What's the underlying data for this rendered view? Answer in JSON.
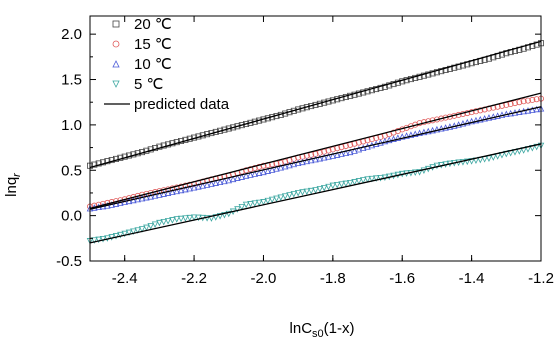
{
  "chart_data": {
    "type": "scatter",
    "xlabel": "lnC",
    "xlabel_sub": "s0",
    "xlabel_tail": "(1-x)",
    "ylabel": "lnq",
    "ylabel_sub": "r",
    "xlim": [
      -2.5,
      -1.2
    ],
    "ylim": [
      -0.5,
      2.2
    ],
    "x_ticks": [
      -2.4,
      -2.2,
      -2.0,
      -1.8,
      -1.6,
      -1.4,
      -1.2
    ],
    "x_tick_labels": [
      "-2.4",
      "-2.2",
      "-2.0",
      "-1.8",
      "-1.6",
      "-1.4",
      "-1.2"
    ],
    "y_ticks": [
      -0.5,
      0.0,
      0.5,
      1.0,
      1.5,
      2.0
    ],
    "y_tick_labels": [
      "-0.5",
      "0.0",
      "0.5",
      "1.0",
      "1.5",
      "2.0"
    ],
    "legend_position": "top-left",
    "series": [
      {
        "name": "20 ℃",
        "marker": "square",
        "color": "#444444",
        "x": [
          -2.5,
          -2.45,
          -2.4,
          -2.35,
          -2.3,
          -2.25,
          -2.2,
          -2.15,
          -2.1,
          -2.05,
          -2.0,
          -1.95,
          -1.9,
          -1.85,
          -1.8,
          -1.75,
          -1.7,
          -1.65,
          -1.6,
          -1.55,
          -1.5,
          -1.45,
          -1.4,
          -1.35,
          -1.3,
          -1.25,
          -1.2
        ],
        "y": [
          0.55,
          0.6,
          0.65,
          0.7,
          0.76,
          0.81,
          0.86,
          0.91,
          0.96,
          1.01,
          1.06,
          1.11,
          1.17,
          1.22,
          1.27,
          1.32,
          1.37,
          1.42,
          1.48,
          1.53,
          1.58,
          1.63,
          1.68,
          1.73,
          1.79,
          1.84,
          1.9
        ]
      },
      {
        "name": "15 ℃",
        "marker": "circle",
        "color": "#e05a5a",
        "x": [
          -2.5,
          -2.45,
          -2.4,
          -2.35,
          -2.3,
          -2.25,
          -2.2,
          -2.15,
          -2.1,
          -2.05,
          -2.0,
          -1.95,
          -1.9,
          -1.85,
          -1.8,
          -1.75,
          -1.7,
          -1.65,
          -1.6,
          -1.55,
          -1.5,
          -1.45,
          -1.4,
          -1.35,
          -1.3,
          -1.25,
          -1.2
        ],
        "y": [
          0.1,
          0.14,
          0.18,
          0.23,
          0.27,
          0.31,
          0.35,
          0.4,
          0.44,
          0.5,
          0.55,
          0.58,
          0.64,
          0.68,
          0.73,
          0.78,
          0.83,
          0.88,
          0.95,
          1.02,
          1.06,
          1.1,
          1.14,
          1.18,
          1.22,
          1.26,
          1.29
        ]
      },
      {
        "name": "10 ℃",
        "marker": "triangle-up",
        "color": "#4a5ad8",
        "x": [
          -2.5,
          -2.45,
          -2.4,
          -2.35,
          -2.3,
          -2.25,
          -2.2,
          -2.15,
          -2.1,
          -2.05,
          -2.0,
          -1.95,
          -1.9,
          -1.85,
          -1.8,
          -1.75,
          -1.7,
          -1.65,
          -1.6,
          -1.55,
          -1.5,
          -1.45,
          -1.4,
          -1.35,
          -1.3,
          -1.25,
          -1.2
        ],
        "y": [
          0.08,
          0.11,
          0.15,
          0.19,
          0.23,
          0.27,
          0.31,
          0.35,
          0.39,
          0.44,
          0.48,
          0.53,
          0.58,
          0.62,
          0.66,
          0.7,
          0.76,
          0.82,
          0.87,
          0.91,
          0.95,
          0.99,
          1.04,
          1.08,
          1.12,
          1.15,
          1.18
        ]
      },
      {
        "name": "5 ℃",
        "marker": "triangle-down",
        "color": "#3aa6a0",
        "x": [
          -2.5,
          -2.45,
          -2.4,
          -2.35,
          -2.3,
          -2.25,
          -2.2,
          -2.15,
          -2.1,
          -2.05,
          -2.0,
          -1.95,
          -1.9,
          -1.85,
          -1.8,
          -1.75,
          -1.7,
          -1.65,
          -1.6,
          -1.55,
          -1.5,
          -1.45,
          -1.4,
          -1.35,
          -1.3,
          -1.25,
          -1.2
        ],
        "y": [
          -0.28,
          -0.25,
          -0.2,
          -0.15,
          -0.08,
          -0.04,
          -0.02,
          -0.03,
          0.02,
          0.12,
          0.15,
          0.2,
          0.25,
          0.28,
          0.33,
          0.36,
          0.4,
          0.42,
          0.46,
          0.48,
          0.55,
          0.58,
          0.6,
          0.63,
          0.68,
          0.72,
          0.77
        ]
      }
    ],
    "predicted_lines": [
      {
        "name": "predicted data",
        "color": "#000000",
        "x": [
          -2.5,
          -1.2
        ],
        "y": [
          0.53,
          1.92
        ]
      },
      {
        "color": "#000000",
        "x": [
          -2.5,
          -1.2
        ],
        "y": [
          0.08,
          1.35
        ]
      },
      {
        "color": "#000000",
        "x": [
          -2.5,
          -1.2
        ],
        "y": [
          0.07,
          1.2
        ]
      },
      {
        "color": "#000000",
        "x": [
          -2.5,
          -1.2
        ],
        "y": [
          -0.3,
          0.79
        ]
      }
    ]
  }
}
